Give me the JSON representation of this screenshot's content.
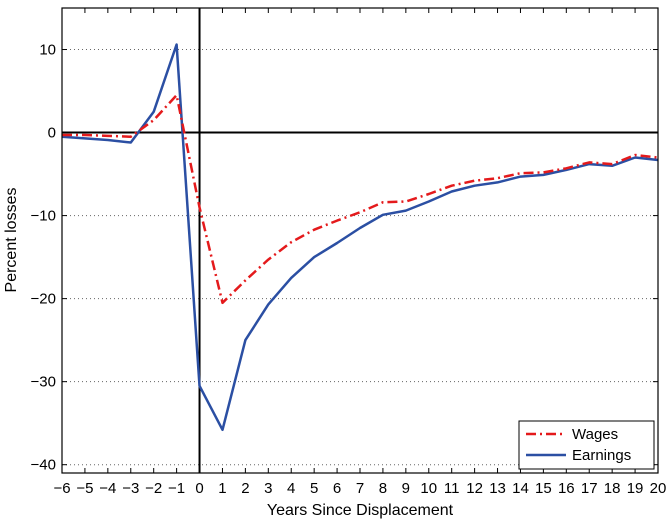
{
  "chart_data": {
    "type": "line",
    "xlabel": "Years Since Displacement",
    "ylabel": "Percent losses",
    "xlim": [
      -6,
      20
    ],
    "ylim": [
      -41,
      15
    ],
    "x_ticks": [
      -6,
      -5,
      -4,
      -3,
      -2,
      -1,
      0,
      1,
      2,
      3,
      4,
      5,
      6,
      7,
      8,
      9,
      10,
      11,
      12,
      13,
      14,
      15,
      16,
      17,
      18,
      19,
      20
    ],
    "y_ticks": [
      -40,
      -30,
      -20,
      -10,
      0,
      10
    ],
    "grid": "horizontal dotted",
    "legend_position": "bottom-right",
    "reference_lines": {
      "x": 0,
      "y": 0
    },
    "x": [
      -6,
      -5,
      -4,
      -3,
      -2,
      -1,
      0,
      1,
      2,
      3,
      4,
      5,
      6,
      7,
      8,
      9,
      10,
      11,
      12,
      13,
      14,
      15,
      16,
      17,
      18,
      19,
      20
    ],
    "series": [
      {
        "name": "Wages",
        "color": "#e41a1c",
        "style": "dash-dot",
        "values": [
          -0.3,
          -0.3,
          -0.4,
          -0.5,
          1.5,
          4.5,
          -9,
          -20.5,
          -17.8,
          -15.3,
          -13.2,
          -11.7,
          -10.6,
          -9.6,
          -8.4,
          -8.3,
          -7.4,
          -6.4,
          -5.8,
          -5.5,
          -4.9,
          -4.8,
          -4.3,
          -3.6,
          -3.8,
          -2.7,
          -3.0
        ]
      },
      {
        "name": "Earnings",
        "color": "#2b4fa3",
        "style": "solid",
        "values": [
          -0.5,
          -0.7,
          -0.9,
          -1.2,
          2.5,
          10.6,
          -30.5,
          -35.8,
          -25,
          -20.7,
          -17.5,
          -15,
          -13.3,
          -11.5,
          -9.9,
          -9.4,
          -8.3,
          -7.1,
          -6.4,
          -6.0,
          -5.3,
          -5.1,
          -4.5,
          -3.8,
          -4.0,
          -3.0,
          -3.3
        ]
      }
    ]
  }
}
